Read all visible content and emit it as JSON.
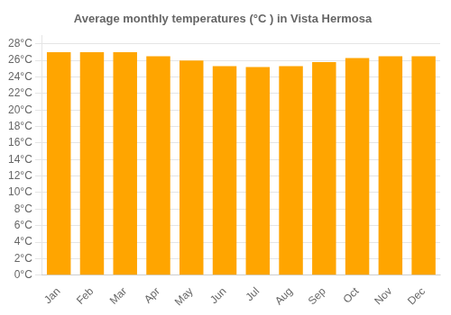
{
  "chart_data": {
    "type": "bar",
    "title": "Average monthly temperatures (°C ) in Vista Hermosa",
    "categories": [
      "Jan",
      "Feb",
      "Mar",
      "Apr",
      "May",
      "Jun",
      "Jul",
      "Aug",
      "Sep",
      "Oct",
      "Nov",
      "Dec"
    ],
    "values": [
      27.0,
      27.0,
      27.0,
      26.5,
      26.0,
      25.3,
      25.2,
      25.3,
      25.8,
      26.3,
      26.5,
      26.5
    ],
    "color": "#FFA500",
    "ylim": [
      0,
      29
    ],
    "yticks": [
      {
        "value": 0,
        "label": "0°C"
      },
      {
        "value": 2,
        "label": "2°C"
      },
      {
        "value": 4,
        "label": "4°C"
      },
      {
        "value": 6,
        "label": "6°C"
      },
      {
        "value": 8,
        "label": "8°C"
      },
      {
        "value": 10,
        "label": "10°C"
      },
      {
        "value": 12,
        "label": "12°C"
      },
      {
        "value": 14,
        "label": "14°C"
      },
      {
        "value": 16,
        "label": "16°C"
      },
      {
        "value": 18,
        "label": "18°C"
      },
      {
        "value": 20,
        "label": "20°C"
      },
      {
        "value": 22,
        "label": "22°C"
      },
      {
        "value": 24,
        "label": "24°C"
      },
      {
        "value": 26,
        "label": "26°C"
      },
      {
        "value": 28,
        "label": "28°C"
      }
    ],
    "grid": true
  }
}
